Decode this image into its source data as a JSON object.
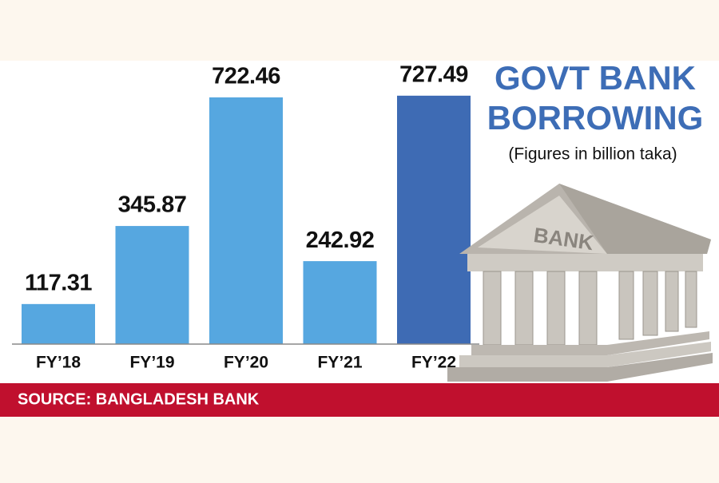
{
  "chart_data": {
    "type": "bar",
    "title_lines": [
      "GOVT BANK",
      "BORROWING"
    ],
    "subtitle": "(Figures in billion taka)",
    "categories": [
      "FY’18",
      "FY’19",
      "FY’20",
      "FY’21",
      "FY’22"
    ],
    "values": [
      117.31,
      345.87,
      722.46,
      242.92,
      727.49
    ],
    "colors": [
      "#56a7e0",
      "#56a7e0",
      "#56a7e0",
      "#56a7e0",
      "#3e6bb4"
    ],
    "source": "SOURCE: BANGLADESH BANK",
    "illustration_text": "BANK"
  }
}
